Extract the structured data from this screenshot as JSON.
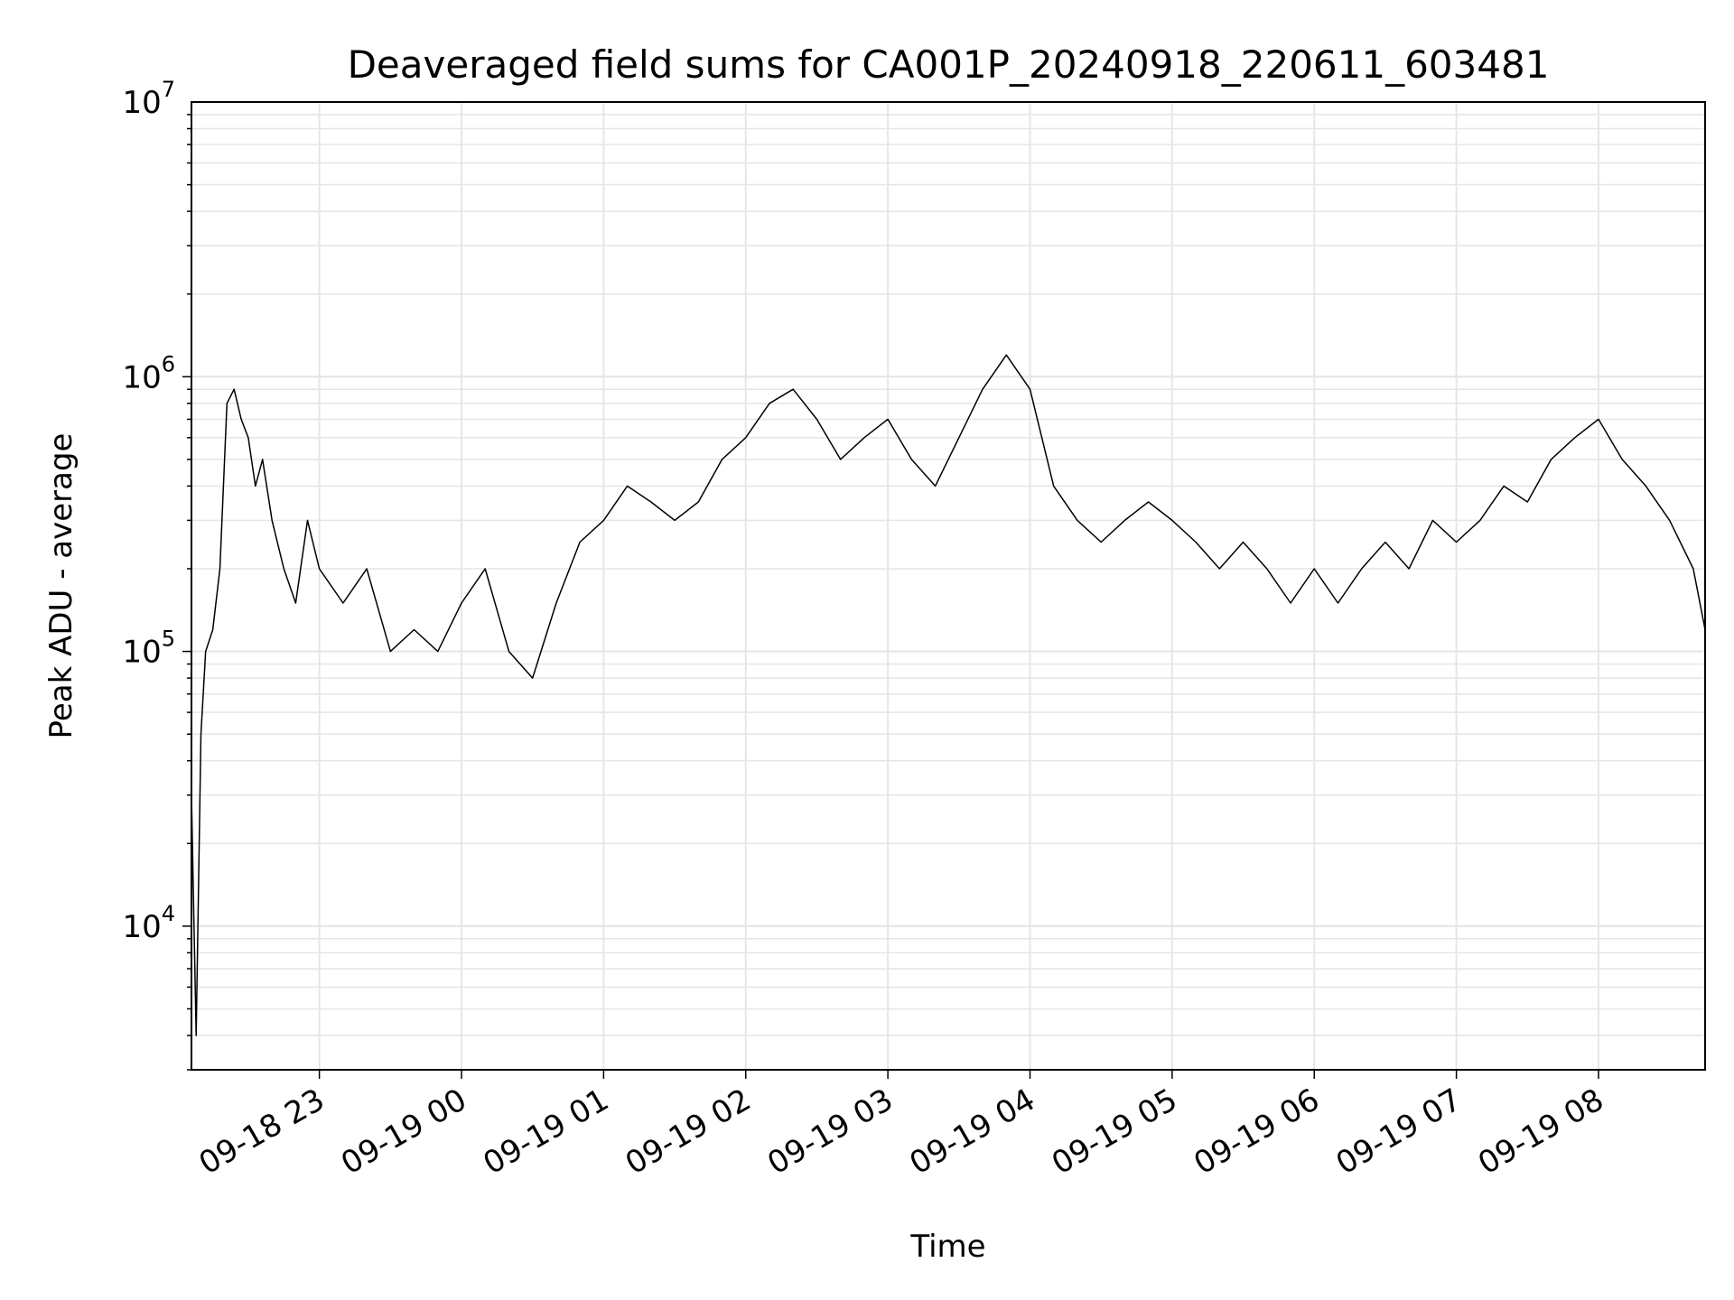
{
  "chart_data": {
    "type": "line",
    "title": "Deaveraged field sums for CA001P_20240918_220611_603481",
    "xlabel": "Time",
    "ylabel": "Peak ADU - average",
    "yscale": "log",
    "ylim": [
      3000,
      10000000
    ],
    "xlim": [
      "2024-09-18 22:06",
      "2024-09-19 08:45"
    ],
    "y_ticks": [
      {
        "base": "10",
        "exp": "4",
        "value": 10000
      },
      {
        "base": "10",
        "exp": "5",
        "value": 100000
      },
      {
        "base": "10",
        "exp": "6",
        "value": 1000000
      },
      {
        "base": "10",
        "exp": "7",
        "value": 10000000
      }
    ],
    "x_ticks": [
      {
        "label": "09-18 23",
        "time": "2024-09-18 23:00"
      },
      {
        "label": "09-19 00",
        "time": "2024-09-19 00:00"
      },
      {
        "label": "09-19 01",
        "time": "2024-09-19 01:00"
      },
      {
        "label": "09-19 02",
        "time": "2024-09-19 02:00"
      },
      {
        "label": "09-19 03",
        "time": "2024-09-19 03:00"
      },
      {
        "label": "09-19 04",
        "time": "2024-09-19 04:00"
      },
      {
        "label": "09-19 05",
        "time": "2024-09-19 05:00"
      },
      {
        "label": "09-19 06",
        "time": "2024-09-19 06:00"
      },
      {
        "label": "09-19 07",
        "time": "2024-09-19 07:00"
      },
      {
        "label": "09-19 08",
        "time": "2024-09-19 08:00"
      }
    ],
    "grid": true,
    "line_color": "#000000",
    "grid_color": "#e6e6e6",
    "series": [
      {
        "x": [
          "2024-09-18 22:06",
          "2024-09-18 22:08",
          "2024-09-18 22:10",
          "2024-09-18 22:12",
          "2024-09-18 22:15",
          "2024-09-18 22:18",
          "2024-09-18 22:21",
          "2024-09-18 22:24",
          "2024-09-18 22:27",
          "2024-09-18 22:30",
          "2024-09-18 22:33",
          "2024-09-18 22:36",
          "2024-09-18 22:40",
          "2024-09-18 22:45",
          "2024-09-18 22:50",
          "2024-09-18 22:55",
          "2024-09-18 23:00",
          "2024-09-18 23:10",
          "2024-09-18 23:20",
          "2024-09-18 23:30",
          "2024-09-18 23:40",
          "2024-09-18 23:50",
          "2024-09-19 00:00",
          "2024-09-19 00:10",
          "2024-09-19 00:20",
          "2024-09-19 00:30",
          "2024-09-19 00:40",
          "2024-09-19 00:50",
          "2024-09-19 01:00",
          "2024-09-19 01:10",
          "2024-09-19 01:20",
          "2024-09-19 01:30",
          "2024-09-19 01:40",
          "2024-09-19 01:50",
          "2024-09-19 02:00",
          "2024-09-19 02:10",
          "2024-09-19 02:20",
          "2024-09-19 02:30",
          "2024-09-19 02:40",
          "2024-09-19 02:50",
          "2024-09-19 03:00",
          "2024-09-19 03:10",
          "2024-09-19 03:20",
          "2024-09-19 03:30",
          "2024-09-19 03:40",
          "2024-09-19 03:50",
          "2024-09-19 04:00",
          "2024-09-19 04:10",
          "2024-09-19 04:20",
          "2024-09-19 04:30",
          "2024-09-19 04:40",
          "2024-09-19 04:50",
          "2024-09-19 05:00",
          "2024-09-19 05:10",
          "2024-09-19 05:20",
          "2024-09-19 05:30",
          "2024-09-19 05:40",
          "2024-09-19 05:50",
          "2024-09-19 06:00",
          "2024-09-19 06:10",
          "2024-09-19 06:20",
          "2024-09-19 06:30",
          "2024-09-19 06:40",
          "2024-09-19 06:50",
          "2024-09-19 07:00",
          "2024-09-19 07:10",
          "2024-09-19 07:20",
          "2024-09-19 07:30",
          "2024-09-19 07:40",
          "2024-09-19 07:50",
          "2024-09-19 08:00",
          "2024-09-19 08:10",
          "2024-09-19 08:20",
          "2024-09-19 08:30",
          "2024-09-19 08:40",
          "2024-09-19 08:45"
        ],
        "y": [
          30000,
          4000,
          50000,
          100000,
          120000,
          200000,
          800000,
          900000,
          700000,
          600000,
          400000,
          500000,
          300000,
          200000,
          150000,
          300000,
          200000,
          150000,
          200000,
          100000,
          120000,
          100000,
          150000,
          200000,
          100000,
          80000,
          150000,
          250000,
          300000,
          400000,
          350000,
          300000,
          350000,
          500000,
          600000,
          800000,
          900000,
          700000,
          500000,
          600000,
          700000,
          500000,
          400000,
          600000,
          900000,
          1200000,
          900000,
          400000,
          300000,
          250000,
          300000,
          350000,
          300000,
          250000,
          200000,
          250000,
          200000,
          150000,
          200000,
          150000,
          200000,
          250000,
          200000,
          300000,
          250000,
          300000,
          400000,
          350000,
          500000,
          600000,
          700000,
          500000,
          400000,
          300000,
          200000,
          120000
        ]
      }
    ]
  }
}
